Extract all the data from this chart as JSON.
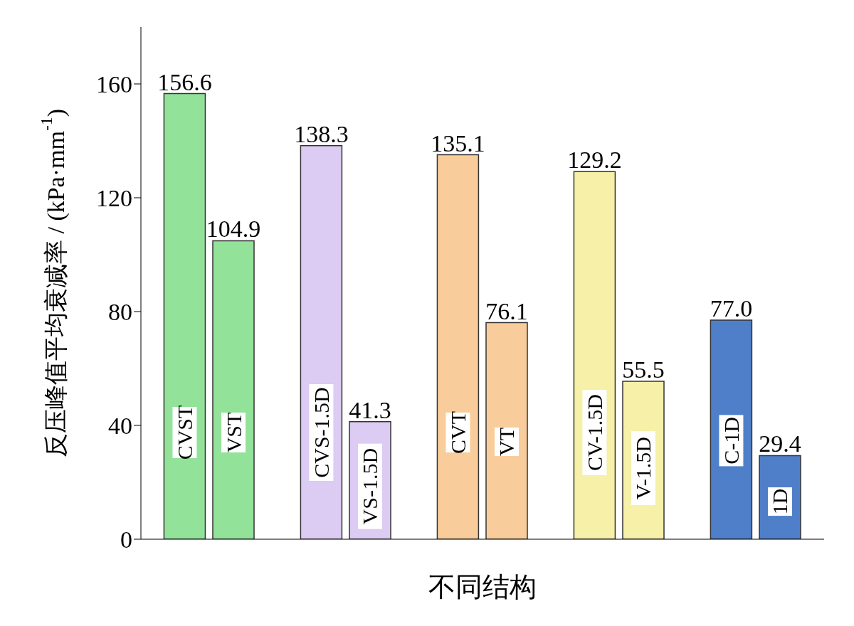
{
  "chart_data": {
    "type": "bar",
    "xlabel": "不同结构",
    "ylabel": "反压峰值平均衰减率 / (kPa·mm$^{-1}$)",
    "categories": [
      "CVST",
      "VST",
      "CVS-1.5D",
      "VS-1.5D",
      "CVT",
      "VT",
      "CV-1.5D",
      "V-1.5D",
      "C-1D",
      "1D"
    ],
    "values": [
      156.6,
      104.9,
      138.3,
      41.3,
      135.1,
      76.1,
      129.2,
      55.5,
      77.0,
      29.4
    ],
    "value_labels": [
      "156.6",
      "104.9",
      "138.3",
      "41.3",
      "135.1",
      "76.1",
      "129.2",
      "55.5",
      "77.0",
      "29.4"
    ],
    "colors": [
      "#93e29a",
      "#93e29a",
      "#dccbf2",
      "#dccbf2",
      "#f9cd9b",
      "#f9cd9b",
      "#f6f0a8",
      "#f6f0a8",
      "#4f7fc9",
      "#4f7fc9"
    ],
    "ylim": [
      0,
      180
    ],
    "yticks": [
      0,
      40,
      80,
      120,
      160
    ],
    "tick_labels": "y"
  }
}
